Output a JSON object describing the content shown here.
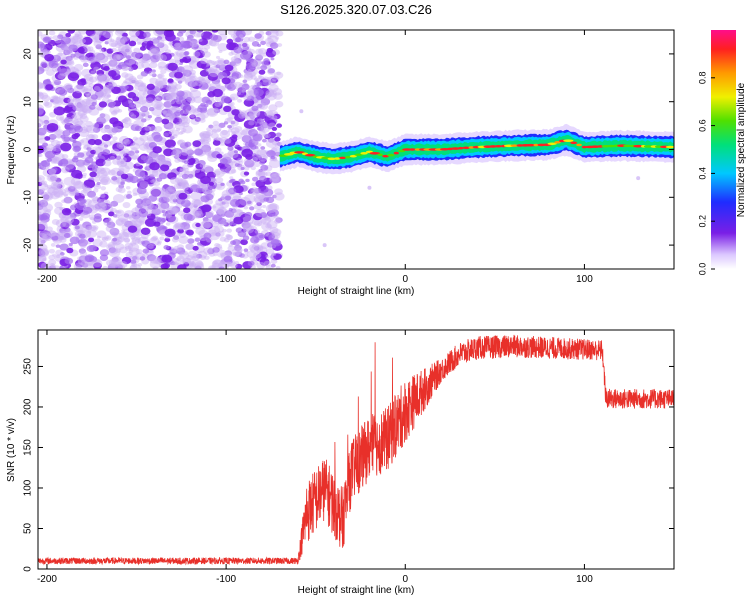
{
  "figure_title": "S126.2025.320.07.03.C26",
  "colors": {
    "snr_line": "#e8302a",
    "noise_purple": "#7a1fe6",
    "axis": "#000000",
    "background": "#ffffff"
  },
  "chart_data": [
    {
      "type": "heatmap",
      "title": "S126.2025.320.07.03.C26",
      "xlabel": "Height of straight line (km)",
      "ylabel": "Frequency (Hz)",
      "xlim": [
        -205,
        150
      ],
      "ylim": [
        -25,
        25
      ],
      "x_ticks": [
        -200,
        -100,
        0,
        100
      ],
      "x_tick_labels": [
        "-200",
        "-100",
        "0",
        "100"
      ],
      "y_ticks": [
        -20,
        -10,
        0,
        10,
        20
      ],
      "y_tick_labels": [
        "-20",
        "-10",
        "0",
        "10",
        "20"
      ],
      "regions": [
        {
          "name": "scattered noise",
          "x_range": [
            -205,
            -70
          ],
          "freq_range": [
            -25,
            25
          ]
        },
        {
          "name": "narrow signal band",
          "x_range": [
            -70,
            150
          ],
          "freq_center": 0,
          "freq_halfwidth": 2
        }
      ],
      "band_center_Hz": [
        {
          "x": -70,
          "f": -1.5
        },
        {
          "x": -60,
          "f": -0.5
        },
        {
          "x": -50,
          "f": -1.5
        },
        {
          "x": -40,
          "f": -2.0
        },
        {
          "x": -30,
          "f": -1.5
        },
        {
          "x": -20,
          "f": -0.5
        },
        {
          "x": -10,
          "f": -1.5
        },
        {
          "x": 0,
          "f": 0
        },
        {
          "x": 20,
          "f": 0
        },
        {
          "x": 40,
          "f": 0.5
        },
        {
          "x": 60,
          "f": 0.8
        },
        {
          "x": 80,
          "f": 1.0
        },
        {
          "x": 90,
          "f": 2.0
        },
        {
          "x": 100,
          "f": 0.5
        },
        {
          "x": 120,
          "f": 0.8
        },
        {
          "x": 150,
          "f": 0.5
        }
      ],
      "colorbar": {
        "label": "Normalized spectral amplitude",
        "range": [
          0.0,
          1.0
        ],
        "ticks": [
          0.0,
          0.2,
          0.4,
          0.6,
          0.8
        ],
        "tick_labels": [
          "0.0",
          "0.2",
          "0.4",
          "0.6",
          "0.8"
        ],
        "colormap": "rainbow (white-violet-blue-cyan-green-yellow-orange-red-magenta)"
      }
    },
    {
      "type": "line",
      "title": "",
      "xlabel": "Height of straight line (km)",
      "ylabel": "SNR (10 * v/v)",
      "xlim": [
        -205,
        150
      ],
      "ylim": [
        0,
        295
      ],
      "x_ticks": [
        -200,
        -100,
        0,
        100
      ],
      "x_tick_labels": [
        "-200",
        "-100",
        "0",
        "100"
      ],
      "y_ticks": [
        0,
        50,
        100,
        150,
        200,
        250
      ],
      "y_tick_labels": [
        "0",
        "50",
        "100",
        "150",
        "200",
        "250"
      ],
      "series": [
        {
          "name": "SNR",
          "color": "#e8302a",
          "trend": [
            {
              "x": -205,
              "y": 10
            },
            {
              "x": -60,
              "y": 10
            },
            {
              "x": -55,
              "y": 70
            },
            {
              "x": -45,
              "y": 100
            },
            {
              "x": -35,
              "y": 60
            },
            {
              "x": -30,
              "y": 120
            },
            {
              "x": -20,
              "y": 150
            },
            {
              "x": -10,
              "y": 160
            },
            {
              "x": 0,
              "y": 195
            },
            {
              "x": 10,
              "y": 220
            },
            {
              "x": 20,
              "y": 245
            },
            {
              "x": 30,
              "y": 265
            },
            {
              "x": 40,
              "y": 273
            },
            {
              "x": 60,
              "y": 275
            },
            {
              "x": 90,
              "y": 272
            },
            {
              "x": 110,
              "y": 270
            },
            {
              "x": 112,
              "y": 210
            },
            {
              "x": 150,
              "y": 210
            }
          ],
          "noise_amplitude": [
            {
              "x": -205,
              "a": 4
            },
            {
              "x": -60,
              "a": 4
            },
            {
              "x": -55,
              "a": 40
            },
            {
              "x": 0,
              "a": 40
            },
            {
              "x": 20,
              "a": 15
            },
            {
              "x": 150,
              "a": 12
            }
          ]
        }
      ]
    }
  ]
}
